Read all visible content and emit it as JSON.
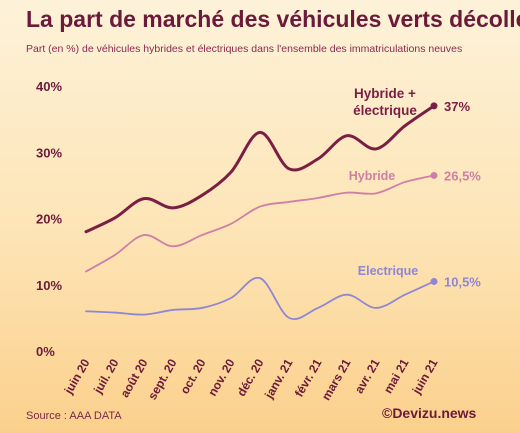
{
  "header": {
    "title": "La part de marché des véhicules verts décolle",
    "subtitle": "Part (en %) de véhicules hybrides et électriques dans l'ensemble des immatriculations neuves"
  },
  "footer": {
    "source": "Source : AAA DATA",
    "credit": "©Devizu.news"
  },
  "chart_data": {
    "type": "line",
    "title": "La part de marché des véhicules verts décolle",
    "subtitle": "Part (en %) de véhicules hybrides et électriques dans l'ensemble des immatriculations neuves",
    "xlabel": "",
    "ylabel": "",
    "ylim": [
      0,
      40
    ],
    "yticks": [
      "0%",
      "10%",
      "20%",
      "30%",
      "40%"
    ],
    "grid": false,
    "legend": "inline labels at line ends",
    "categories": [
      "juin 20",
      "juil. 20",
      "août 20",
      "sept. 20",
      "oct. 20",
      "nov. 20",
      "déc. 20",
      "janv. 21",
      "févr. 21",
      "mars 21",
      "avr. 21",
      "mai 21",
      "juin 21"
    ],
    "series": [
      {
        "name": "Hybride + électrique",
        "name_lines": [
          "Hybride +",
          "électrique"
        ],
        "end_label": "37%",
        "color": "#7a1e44",
        "values": [
          18,
          20.1,
          23,
          21.6,
          23.5,
          27,
          33,
          27.5,
          29,
          32.5,
          30.5,
          34,
          37
        ]
      },
      {
        "name": "Hybride",
        "name_lines": [
          "Hybride"
        ],
        "end_label": "26,5%",
        "color": "#cf7fa6",
        "values": [
          12,
          14.5,
          17.5,
          15.8,
          17.5,
          19.2,
          21.8,
          22.5,
          23.1,
          23.9,
          23.8,
          25.5,
          26.5
        ]
      },
      {
        "name": "Electrique",
        "name_lines": [
          "Electrique"
        ],
        "end_label": "10,5%",
        "color": "#8f86d4",
        "values": [
          6,
          5.8,
          5.5,
          6.2,
          6.5,
          8,
          11,
          5,
          6.5,
          8.5,
          6.5,
          8.5,
          10.5
        ]
      }
    ]
  }
}
